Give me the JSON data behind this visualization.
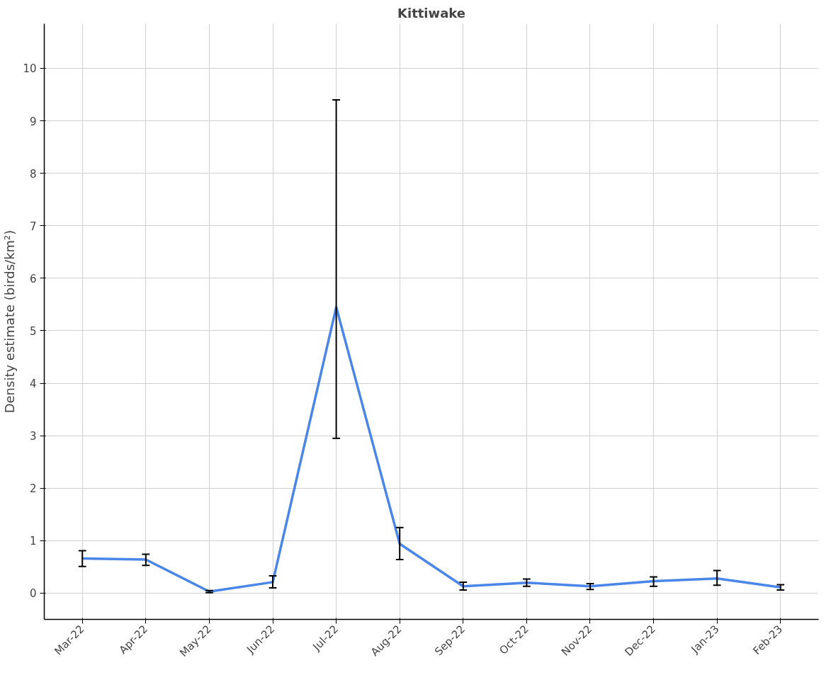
{
  "chart_data": {
    "type": "line",
    "title": "Kittiwake",
    "ylabel": "Density estimate (birds/km²)",
    "categories": [
      "Mar-22",
      "Apr-22",
      "May-22",
      "Jun-22",
      "Jul-22",
      "Aug-22",
      "Sep-22",
      "Oct-22",
      "Nov-22",
      "Dec-22",
      "Jan-23",
      "Feb-23"
    ],
    "series": [
      {
        "color": "#4a86e8",
        "values": [
          0.66,
          0.64,
          0.03,
          0.21,
          5.45,
          0.94,
          0.13,
          0.2,
          0.13,
          0.23,
          0.28,
          0.11
        ],
        "errors": [
          [
            0.51,
            0.81
          ],
          [
            0.53,
            0.74
          ],
          [
            0.01,
            0.05
          ],
          [
            0.1,
            0.33
          ],
          [
            2.95,
            9.4
          ],
          [
            0.64,
            1.25
          ],
          [
            0.06,
            0.21
          ],
          [
            0.13,
            0.27
          ],
          [
            0.07,
            0.18
          ],
          [
            0.13,
            0.31
          ],
          [
            0.15,
            0.43
          ],
          [
            0.06,
            0.16
          ]
        ]
      }
    ],
    "ylim": [
      -0.5,
      10.85
    ],
    "yticks": [
      0,
      1,
      2,
      3,
      4,
      5,
      6,
      7,
      8,
      9,
      10
    ],
    "grid": true,
    "marker": "none",
    "line_style": "solid"
  }
}
